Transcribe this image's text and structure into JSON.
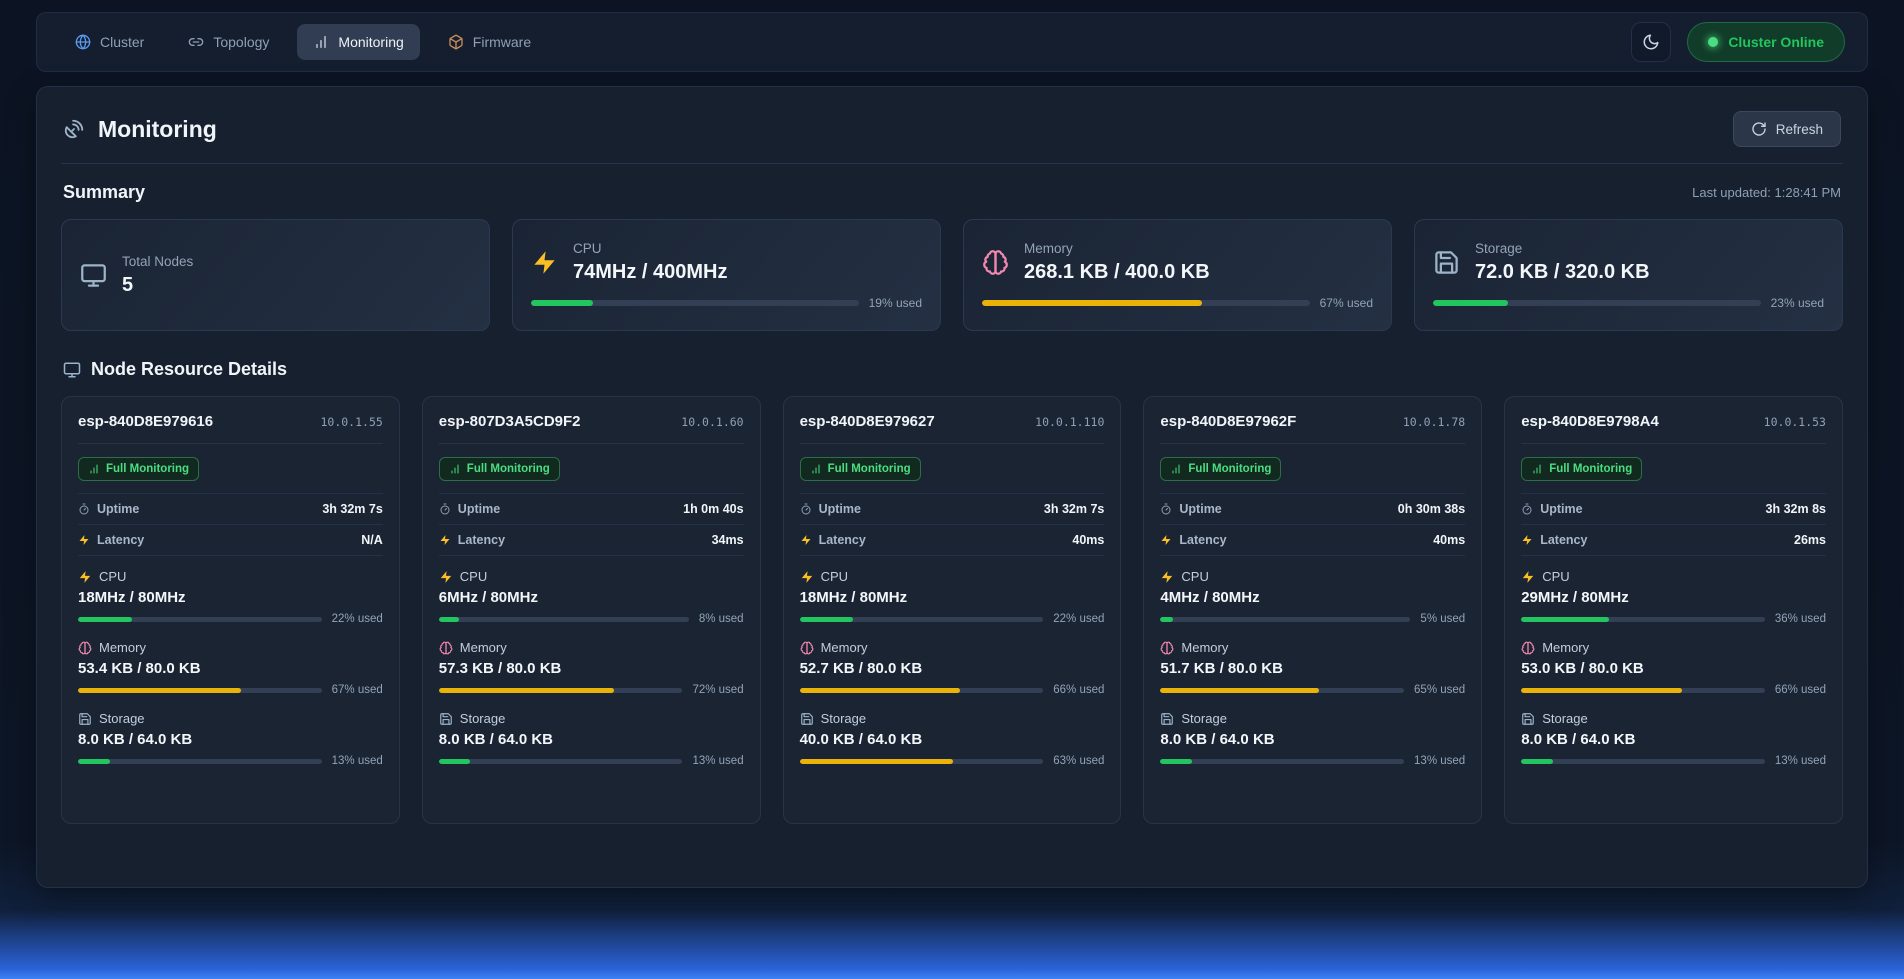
{
  "theme": {
    "bar_colors": {
      "green": "#22c55e",
      "yellow": "#eab308"
    },
    "status_green": "#22c55e"
  },
  "nav": {
    "tabs": [
      {
        "label": "Cluster",
        "icon": "globe",
        "active": false
      },
      {
        "label": "Topology",
        "icon": "link",
        "active": false
      },
      {
        "label": "Monitoring",
        "icon": "chart",
        "active": true
      },
      {
        "label": "Firmware",
        "icon": "package",
        "active": false
      }
    ],
    "theme_toggle_icon": "moon",
    "status_button": {
      "label": "Cluster Online",
      "state": "online"
    }
  },
  "header": {
    "icon": "satellite",
    "title": "Monitoring",
    "refresh_button": {
      "label": "Refresh",
      "icon": "refresh"
    }
  },
  "summary": {
    "heading": "Summary",
    "last_updated": "Last updated: 1:28:41 PM",
    "cards": [
      {
        "label": "Total Nodes",
        "value": "5",
        "icon": "monitor"
      },
      {
        "label": "CPU",
        "value": "74MHz / 400MHz",
        "icon": "zap",
        "percent": 19,
        "percent_label": "19% used",
        "color": "green"
      },
      {
        "label": "Memory",
        "value": "268.1 KB / 400.0 KB",
        "icon": "brain",
        "percent": 67,
        "percent_label": "67% used",
        "color": "yellow"
      },
      {
        "label": "Storage",
        "value": "72.0 KB / 320.0 KB",
        "icon": "floppy",
        "percent": 23,
        "percent_label": "23% used",
        "color": "green"
      }
    ]
  },
  "nodes": {
    "heading": "Node Resource Details",
    "heading_icon": "monitor",
    "cards": [
      {
        "name": "esp-840D8E979616",
        "ip": "10.0.1.55",
        "badge": "Full Monitoring",
        "stats": [
          {
            "label": "Uptime",
            "icon": "timer",
            "value": "3h 32m 7s"
          },
          {
            "label": "Latency",
            "icon": "zap",
            "value": "N/A"
          }
        ],
        "resources": [
          {
            "label": "CPU",
            "icon": "zap",
            "value": "18MHz / 80MHz",
            "percent": 22,
            "percent_label": "22% used",
            "color": "green"
          },
          {
            "label": "Memory",
            "icon": "brain",
            "value": "53.4 KB / 80.0 KB",
            "percent": 67,
            "percent_label": "67% used",
            "color": "yellow"
          },
          {
            "label": "Storage",
            "icon": "floppy",
            "value": "8.0 KB / 64.0 KB",
            "percent": 13,
            "percent_label": "13% used",
            "color": "green"
          }
        ]
      },
      {
        "name": "esp-807D3A5CD9F2",
        "ip": "10.0.1.60",
        "badge": "Full Monitoring",
        "stats": [
          {
            "label": "Uptime",
            "icon": "timer",
            "value": "1h 0m 40s"
          },
          {
            "label": "Latency",
            "icon": "zap",
            "value": "34ms"
          }
        ],
        "resources": [
          {
            "label": "CPU",
            "icon": "zap",
            "value": "6MHz / 80MHz",
            "percent": 8,
            "percent_label": "8% used",
            "color": "green"
          },
          {
            "label": "Memory",
            "icon": "brain",
            "value": "57.3 KB / 80.0 KB",
            "percent": 72,
            "percent_label": "72% used",
            "color": "yellow"
          },
          {
            "label": "Storage",
            "icon": "floppy",
            "value": "8.0 KB / 64.0 KB",
            "percent": 13,
            "percent_label": "13% used",
            "color": "green"
          }
        ]
      },
      {
        "name": "esp-840D8E979627",
        "ip": "10.0.1.110",
        "badge": "Full Monitoring",
        "stats": [
          {
            "label": "Uptime",
            "icon": "timer",
            "value": "3h 32m 7s"
          },
          {
            "label": "Latency",
            "icon": "zap",
            "value": "40ms"
          }
        ],
        "resources": [
          {
            "label": "CPU",
            "icon": "zap",
            "value": "18MHz / 80MHz",
            "percent": 22,
            "percent_label": "22% used",
            "color": "green"
          },
          {
            "label": "Memory",
            "icon": "brain",
            "value": "52.7 KB / 80.0 KB",
            "percent": 66,
            "percent_label": "66% used",
            "color": "yellow"
          },
          {
            "label": "Storage",
            "icon": "floppy",
            "value": "40.0 KB / 64.0 KB",
            "percent": 63,
            "percent_label": "63% used",
            "color": "yellow"
          }
        ]
      },
      {
        "name": "esp-840D8E97962F",
        "ip": "10.0.1.78",
        "badge": "Full Monitoring",
        "stats": [
          {
            "label": "Uptime",
            "icon": "timer",
            "value": "0h 30m 38s"
          },
          {
            "label": "Latency",
            "icon": "zap",
            "value": "40ms"
          }
        ],
        "resources": [
          {
            "label": "CPU",
            "icon": "zap",
            "value": "4MHz / 80MHz",
            "percent": 5,
            "percent_label": "5% used",
            "color": "green"
          },
          {
            "label": "Memory",
            "icon": "brain",
            "value": "51.7 KB / 80.0 KB",
            "percent": 65,
            "percent_label": "65% used",
            "color": "yellow"
          },
          {
            "label": "Storage",
            "icon": "floppy",
            "value": "8.0 KB / 64.0 KB",
            "percent": 13,
            "percent_label": "13% used",
            "color": "green"
          }
        ]
      },
      {
        "name": "esp-840D8E9798A4",
        "ip": "10.0.1.53",
        "badge": "Full Monitoring",
        "stats": [
          {
            "label": "Uptime",
            "icon": "timer",
            "value": "3h 32m 8s"
          },
          {
            "label": "Latency",
            "icon": "zap",
            "value": "26ms"
          }
        ],
        "resources": [
          {
            "label": "CPU",
            "icon": "zap",
            "value": "29MHz / 80MHz",
            "percent": 36,
            "percent_label": "36% used",
            "color": "green"
          },
          {
            "label": "Memory",
            "icon": "brain",
            "value": "53.0 KB / 80.0 KB",
            "percent": 66,
            "percent_label": "66% used",
            "color": "yellow"
          },
          {
            "label": "Storage",
            "icon": "floppy",
            "value": "8.0 KB / 64.0 KB",
            "percent": 13,
            "percent_label": "13% used",
            "color": "green"
          }
        ]
      }
    ]
  }
}
